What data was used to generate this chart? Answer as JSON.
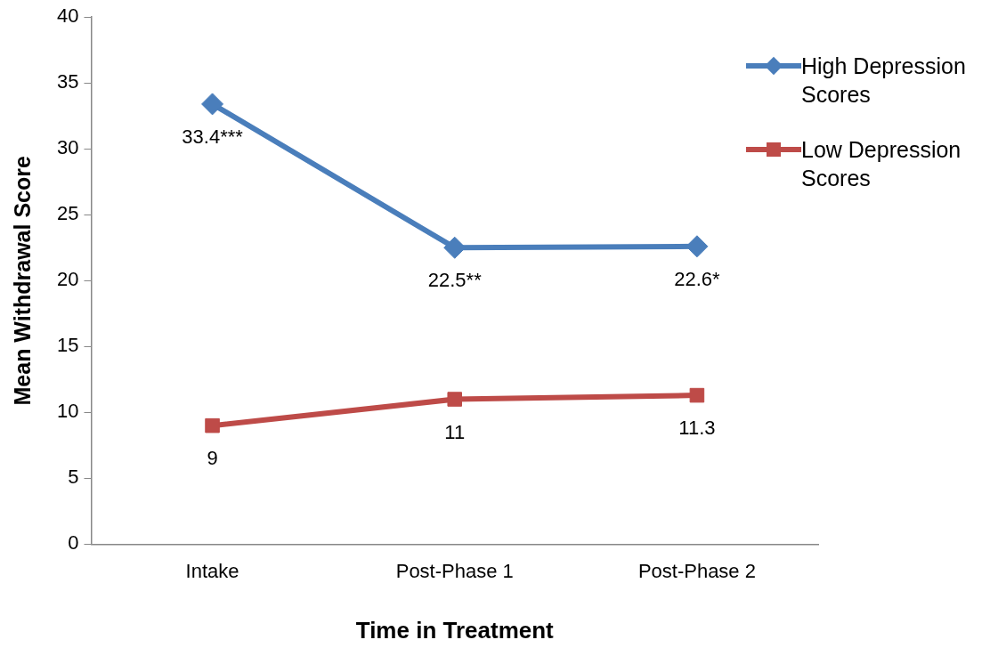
{
  "chart_data": {
    "type": "line",
    "xlabel": "Time in Treatment",
    "ylabel": "Mean Withdrawal Score",
    "categories": [
      "Intake",
      "Post-Phase 1",
      "Post-Phase 2"
    ],
    "series": [
      {
        "name": "High Depression Scores",
        "color": "#4a7ebb",
        "marker": "diamond",
        "values": [
          33.4,
          22.5,
          22.6
        ],
        "value_labels": [
          "33.4***",
          "22.5**",
          "22.6*"
        ]
      },
      {
        "name": "Low Depression Scores",
        "color": "#be4b48",
        "marker": "square",
        "values": [
          9,
          11,
          11.3
        ],
        "value_labels": [
          "9",
          "11",
          "11.3"
        ]
      }
    ],
    "ylim": [
      0,
      40
    ],
    "yticks": [
      0,
      5,
      10,
      15,
      20,
      25,
      30,
      35,
      40
    ],
    "grid": false,
    "legend": "right",
    "line_style": "solid"
  }
}
